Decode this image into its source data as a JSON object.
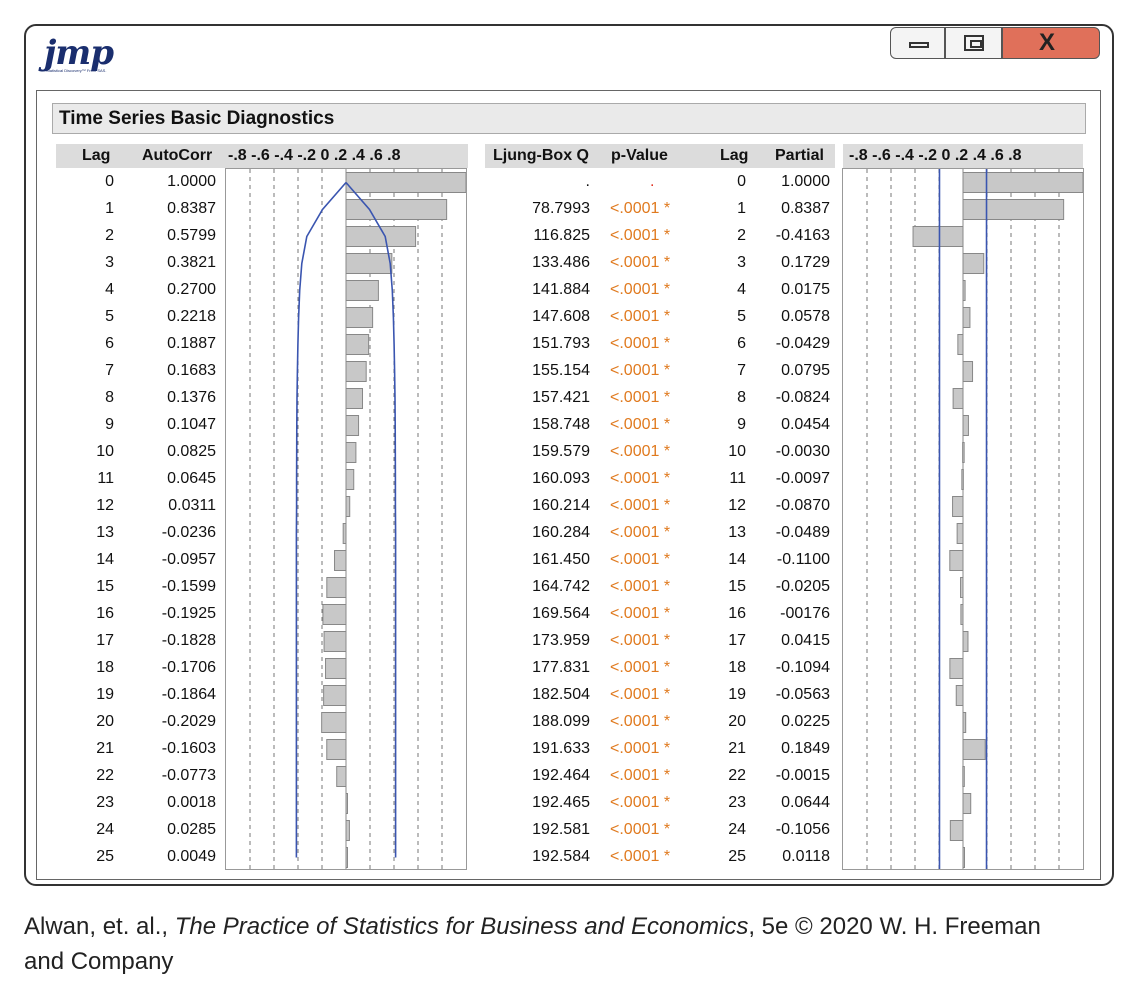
{
  "app": {
    "logo_text": "jmp",
    "logo_sub": "Statistical Discovery™ From SAS."
  },
  "window_controls": {
    "minimize_icon": "minimize-icon",
    "maximize_icon": "maximize-icon",
    "close_glyph": "X"
  },
  "report": {
    "title": "Time Series Basic Diagnostics"
  },
  "headers": {
    "lag": "Lag",
    "autocorr": "AutoCorr",
    "axis_scale": "-.8 -.6 -.4 -.2  0  .2  .4  .6  .8",
    "ljung": "Ljung-Box Q",
    "pvalue": "p-Value",
    "lag2": "Lag",
    "partial": "Partial"
  },
  "rows": [
    {
      "lag": "0",
      "ac": "1.0000",
      "q": ".",
      "p": ".",
      "plag": "0",
      "pac": "1.0000"
    },
    {
      "lag": "1",
      "ac": "0.8387",
      "q": "78.7993",
      "p": "<.0001 *",
      "plag": "1",
      "pac": "0.8387"
    },
    {
      "lag": "2",
      "ac": "0.5799",
      "q": "116.825",
      "p": "<.0001 *",
      "plag": "2",
      "pac": "-0.4163"
    },
    {
      "lag": "3",
      "ac": "0.3821",
      "q": "133.486",
      "p": "<.0001 *",
      "plag": "3",
      "pac": "0.1729"
    },
    {
      "lag": "4",
      "ac": "0.2700",
      "q": "141.884",
      "p": "<.0001 *",
      "plag": "4",
      "pac": "0.0175"
    },
    {
      "lag": "5",
      "ac": "0.2218",
      "q": "147.608",
      "p": "<.0001 *",
      "plag": "5",
      "pac": "0.0578"
    },
    {
      "lag": "6",
      "ac": "0.1887",
      "q": "151.793",
      "p": "<.0001 *",
      "plag": "6",
      "pac": "-0.0429"
    },
    {
      "lag": "7",
      "ac": "0.1683",
      "q": "155.154",
      "p": "<.0001 *",
      "plag": "7",
      "pac": "0.0795"
    },
    {
      "lag": "8",
      "ac": "0.1376",
      "q": "157.421",
      "p": "<.0001 *",
      "plag": "8",
      "pac": "-0.0824"
    },
    {
      "lag": "9",
      "ac": "0.1047",
      "q": "158.748",
      "p": "<.0001 *",
      "plag": "9",
      "pac": "0.0454"
    },
    {
      "lag": "10",
      "ac": "0.0825",
      "q": "159.579",
      "p": "<.0001 *",
      "plag": "10",
      "pac": "-0.0030"
    },
    {
      "lag": "11",
      "ac": "0.0645",
      "q": "160.093",
      "p": "<.0001 *",
      "plag": "11",
      "pac": "-0.0097"
    },
    {
      "lag": "12",
      "ac": "0.0311",
      "q": "160.214",
      "p": "<.0001 *",
      "plag": "12",
      "pac": "-0.0870"
    },
    {
      "lag": "13",
      "ac": "-0.0236",
      "q": "160.284",
      "p": "<.0001 *",
      "plag": "13",
      "pac": "-0.0489"
    },
    {
      "lag": "14",
      "ac": "-0.0957",
      "q": "161.450",
      "p": "<.0001 *",
      "plag": "14",
      "pac": "-0.1100"
    },
    {
      "lag": "15",
      "ac": "-0.1599",
      "q": "164.742",
      "p": "<.0001 *",
      "plag": "15",
      "pac": "-0.0205"
    },
    {
      "lag": "16",
      "ac": "-0.1925",
      "q": "169.564",
      "p": "<.0001 *",
      "plag": "16",
      "pac": "-00176"
    },
    {
      "lag": "17",
      "ac": "-0.1828",
      "q": "173.959",
      "p": "<.0001 *",
      "plag": "17",
      "pac": "0.0415"
    },
    {
      "lag": "18",
      "ac": "-0.1706",
      "q": "177.831",
      "p": "<.0001 *",
      "plag": "18",
      "pac": "-0.1094"
    },
    {
      "lag": "19",
      "ac": "-0.1864",
      "q": "182.504",
      "p": "<.0001 *",
      "plag": "19",
      "pac": "-0.0563"
    },
    {
      "lag": "20",
      "ac": "-0.2029",
      "q": "188.099",
      "p": "<.0001 *",
      "plag": "20",
      "pac": "0.0225"
    },
    {
      "lag": "21",
      "ac": "-0.1603",
      "q": "191.633",
      "p": "<.0001 *",
      "plag": "21",
      "pac": "0.1849"
    },
    {
      "lag": "22",
      "ac": "-0.0773",
      "q": "192.464",
      "p": "<.0001 *",
      "plag": "22",
      "pac": "-0.0015"
    },
    {
      "lag": "23",
      "ac": "0.0018",
      "q": "192.465",
      "p": "<.0001 *",
      "plag": "23",
      "pac": "0.0644"
    },
    {
      "lag": "24",
      "ac": "0.0285",
      "q": "192.581",
      "p": "<.0001 *",
      "plag": "24",
      "pac": "-0.1056"
    },
    {
      "lag": "25",
      "ac": "0.0049",
      "q": "192.584",
      "p": "<.0001 *",
      "plag": "25",
      "pac": "0.0118"
    }
  ],
  "chart_data": [
    {
      "type": "bar",
      "orientation": "horizontal",
      "categories": [
        "0",
        "1",
        "2",
        "3",
        "4",
        "5",
        "6",
        "7",
        "8",
        "9",
        "10",
        "11",
        "12",
        "13",
        "14",
        "15",
        "16",
        "17",
        "18",
        "19",
        "20",
        "21",
        "22",
        "23",
        "24",
        "25"
      ],
      "values": [
        1.0,
        0.8387,
        0.5799,
        0.3821,
        0.27,
        0.2218,
        0.1887,
        0.1683,
        0.1376,
        0.1047,
        0.0825,
        0.0645,
        0.0311,
        -0.0236,
        -0.0957,
        -0.1599,
        -0.1925,
        -0.1828,
        -0.1706,
        -0.1864,
        -0.2029,
        -0.1603,
        -0.0773,
        0.0018,
        0.0285,
        0.0049
      ],
      "upper_band": [
        0,
        0.196,
        0.327,
        0.368,
        0.386,
        0.395,
        0.401,
        0.405,
        0.408,
        0.41,
        0.411,
        0.412,
        0.412,
        0.413,
        0.413,
        0.413,
        0.413,
        0.413,
        0.413,
        0.413,
        0.413,
        0.413,
        0.413,
        0.413,
        0.413,
        0.413
      ],
      "xlim": [
        -1,
        1
      ],
      "gridlines": [
        -0.8,
        -0.6,
        -0.4,
        -0.2,
        0.2,
        0.4,
        0.6,
        0.8
      ],
      "bar_color": "#c8c8c8",
      "band_color": "#3a55b0"
    },
    {
      "type": "bar",
      "orientation": "horizontal",
      "categories": [
        "0",
        "1",
        "2",
        "3",
        "4",
        "5",
        "6",
        "7",
        "8",
        "9",
        "10",
        "11",
        "12",
        "13",
        "14",
        "15",
        "16",
        "17",
        "18",
        "19",
        "20",
        "21",
        "22",
        "23",
        "24",
        "25"
      ],
      "values": [
        1.0,
        0.8387,
        -0.4163,
        0.1729,
        0.0175,
        0.0578,
        -0.0429,
        0.0795,
        -0.0824,
        0.0454,
        -0.003,
        -0.0097,
        -0.087,
        -0.0489,
        -0.11,
        -0.0205,
        -0.0176,
        0.0415,
        -0.1094,
        -0.0563,
        0.0225,
        0.1849,
        -0.0015,
        0.0644,
        -0.1056,
        0.0118
      ],
      "band": 0.196,
      "xlim": [
        -1,
        1
      ],
      "gridlines": [
        -0.8,
        -0.6,
        -0.4,
        -0.2,
        0.2,
        0.4,
        0.6,
        0.8
      ],
      "bar_color": "#c8c8c8",
      "band_color": "#3a55b0"
    }
  ],
  "caption": {
    "authors": "Alwan, et. al., ",
    "book": "The Practice of Statistics for Business and Economics",
    "rest": ", 5e © 2020 W. H. Freeman",
    "line2": "and Company"
  }
}
